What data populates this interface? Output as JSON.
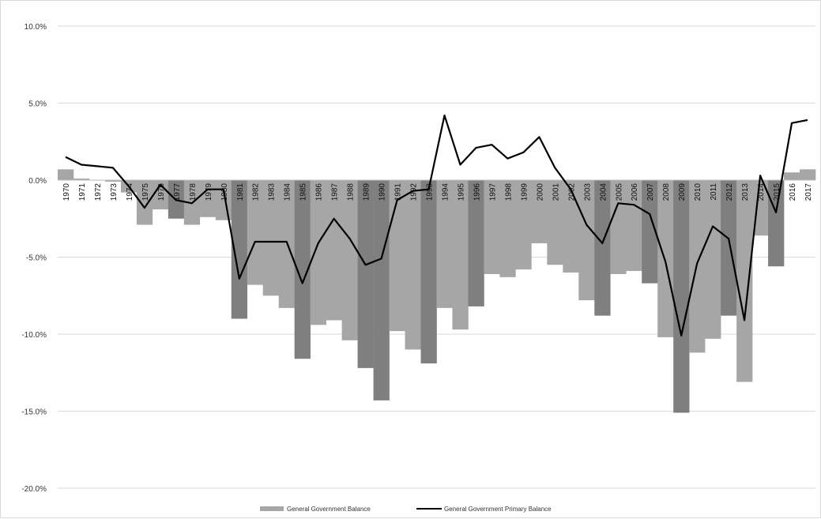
{
  "chart_data": {
    "type": "bar",
    "categories": [
      "1970",
      "1971",
      "1972",
      "1973",
      "1974",
      "1975",
      "1976",
      "1977",
      "1978",
      "1979",
      "1980",
      "1981",
      "1982",
      "1983",
      "1984",
      "1985",
      "1986",
      "1987",
      "1988",
      "1989",
      "1990",
      "1991",
      "1992",
      "1993",
      "1994",
      "1995",
      "1996",
      "1997",
      "1998",
      "1999",
      "2000",
      "2001",
      "2002",
      "2003",
      "2004",
      "2005",
      "2006",
      "2007",
      "2008",
      "2009",
      "2010",
      "2011",
      "2012",
      "2013",
      "2014",
      "2015",
      "2016",
      "2017"
    ],
    "ylim": [
      -20,
      10
    ],
    "yticks": [
      10,
      5,
      0,
      -5,
      -10,
      -15,
      -20
    ],
    "ytick_labels": [
      "10.0%",
      "5.0%",
      "0.0%",
      "-5.0%",
      "-10.0%",
      "-15.0%",
      "-20.0%"
    ],
    "grid": true,
    "legend_position": "bottom",
    "series": [
      {
        "name": "General Government Balance",
        "type": "bar",
        "color": "#a6a6a6",
        "highlight_color": "#7f7f7f",
        "values": [
          0.7,
          0.1,
          0.0,
          -0.1,
          -0.8,
          -2.9,
          -1.9,
          -2.5,
          -2.9,
          -2.4,
          -2.6,
          -9.0,
          -6.8,
          -7.5,
          -8.3,
          -11.6,
          -9.4,
          -9.1,
          -10.4,
          -12.2,
          -14.3,
          -9.8,
          -11.0,
          -11.9,
          -8.3,
          -9.7,
          -8.2,
          -6.1,
          -6.3,
          -5.8,
          -4.1,
          -5.5,
          -6.0,
          -7.8,
          -8.8,
          -6.1,
          -5.9,
          -6.7,
          -10.2,
          -15.1,
          -11.2,
          -10.3,
          -8.8,
          -13.1,
          -3.6,
          -5.6,
          0.5,
          0.7
        ],
        "highlighted_years": [
          "1977",
          "1981",
          "1985",
          "1989",
          "1990",
          "1993",
          "1996",
          "2004",
          "2007",
          "2009",
          "2012",
          "2015"
        ]
      },
      {
        "name": "General Government Primary Balance",
        "type": "line",
        "color": "#000000",
        "values": [
          1.5,
          1.0,
          0.9,
          0.8,
          -0.4,
          -1.8,
          -0.3,
          -1.3,
          -1.5,
          -0.6,
          -0.6,
          -6.4,
          -4.0,
          -4.0,
          -4.0,
          -6.7,
          -4.1,
          -2.5,
          -3.8,
          -5.5,
          -5.1,
          -1.3,
          -0.7,
          -0.6,
          4.2,
          1.0,
          2.1,
          2.3,
          1.4,
          1.8,
          2.8,
          0.8,
          -0.6,
          -2.9,
          -4.1,
          -1.5,
          -1.6,
          -2.2,
          -5.3,
          -10.1,
          -5.4,
          -3.0,
          -3.8,
          -9.1,
          0.3,
          -2.1,
          3.7,
          3.9
        ]
      }
    ]
  }
}
